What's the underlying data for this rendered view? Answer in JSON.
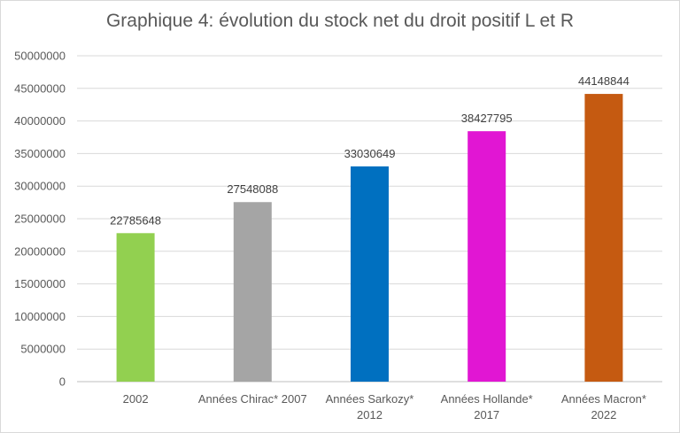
{
  "chart_data": {
    "type": "bar",
    "title": "Graphique 4: évolution du stock net du droit positif L et R",
    "xlabel": "",
    "ylabel": "",
    "categories": [
      [
        "2002"
      ],
      [
        "Années Chirac* 2007"
      ],
      [
        "Années Sarkozy*",
        "2012"
      ],
      [
        "Années Hollande*",
        "2017"
      ],
      [
        "Années Macron*",
        "2022"
      ]
    ],
    "values": [
      22785648,
      27548088,
      33030649,
      38427795,
      44148844
    ],
    "data_labels": [
      "22785648",
      "27548088",
      "33030649",
      "38427795",
      "44148844"
    ],
    "colors": [
      "#92d050",
      "#a5a5a5",
      "#0070c0",
      "#e116d3",
      "#c55a11"
    ],
    "ylim": [
      0,
      50000000
    ],
    "yticks": [
      0,
      5000000,
      10000000,
      15000000,
      20000000,
      25000000,
      30000000,
      35000000,
      40000000,
      45000000,
      50000000
    ],
    "ytick_labels": [
      "0",
      "5000000",
      "10000000",
      "15000000",
      "20000000",
      "25000000",
      "30000000",
      "35000000",
      "40000000",
      "45000000",
      "50000000"
    ],
    "grid": true,
    "legend": "none"
  }
}
